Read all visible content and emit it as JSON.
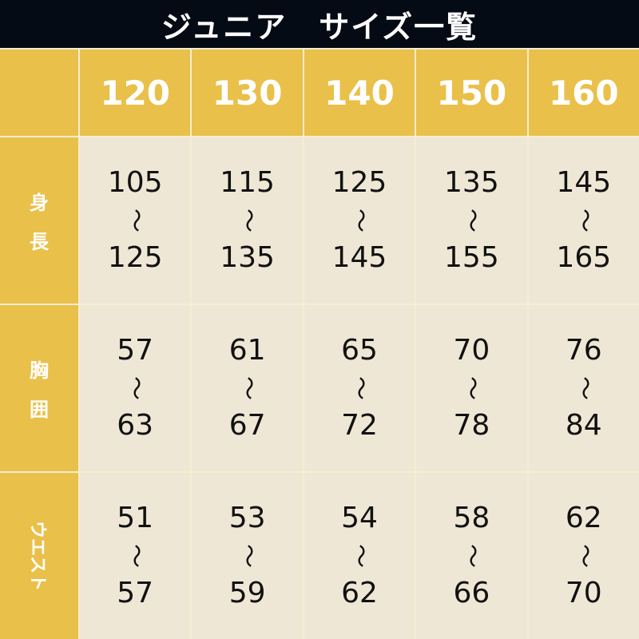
{
  "title": "ジュニア　サイズ一覧",
  "sizes": [
    "120",
    "130",
    "140",
    "150",
    "160"
  ],
  "rows": [
    {
      "label_chars": [
        "身",
        "長"
      ],
      "ranges": [
        [
          "105",
          "125"
        ],
        [
          "115",
          "135"
        ],
        [
          "125",
          "145"
        ],
        [
          "135",
          "155"
        ],
        [
          "145",
          "165"
        ]
      ]
    },
    {
      "label_chars": [
        "胸",
        "囲"
      ],
      "ranges": [
        [
          "57",
          "63"
        ],
        [
          "61",
          "67"
        ],
        [
          "65",
          "72"
        ],
        [
          "70",
          "78"
        ],
        [
          "76",
          "84"
        ]
      ]
    },
    {
      "label": "ウエスト",
      "ranges": [
        [
          "51",
          "57"
        ],
        [
          "53",
          "59"
        ],
        [
          "54",
          "62"
        ],
        [
          "58",
          "66"
        ],
        [
          "62",
          "70"
        ]
      ]
    }
  ],
  "separator": "〜",
  "colors": {
    "header": "#050b14",
    "accent": "#e9c04a",
    "cell": "#efe7d5"
  }
}
